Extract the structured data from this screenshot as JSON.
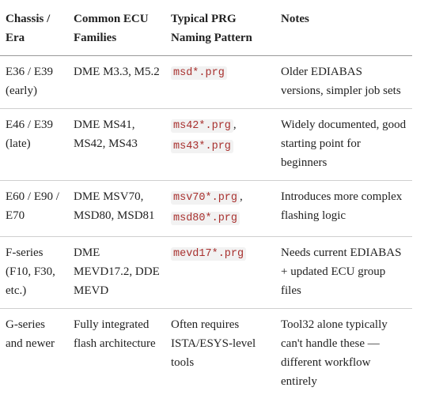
{
  "table": {
    "header": [
      "Chassis / Era",
      "Common ECU Families",
      "Typical PRG Naming Pattern",
      "Notes"
    ],
    "rows": [
      {
        "chassis": "E36 / E39 (early)",
        "families": "DME M3.3, M5.2",
        "pattern": [
          {
            "code": "msd*.prg"
          }
        ],
        "notes": "Older EDIABAS versions, simpler job sets"
      },
      {
        "chassis": "E46 / E39 (late)",
        "families": "DME MS41, MS42, MS43",
        "pattern": [
          {
            "code": "ms42*.prg"
          },
          {
            "text": ","
          },
          {
            "code": "ms43*.prg"
          }
        ],
        "notes": "Widely documented, good starting point for beginners"
      },
      {
        "chassis": "E60 / E90 / E70",
        "families": "DME MSV70, MSD80, MSD81",
        "pattern": [
          {
            "code": "msv70*.prg"
          },
          {
            "text": ","
          },
          {
            "code": "msd80*.prg"
          }
        ],
        "notes": "Introduces more complex flashing logic"
      },
      {
        "chassis": "F-series (F10, F30, etc.)",
        "families": "DME MEVD17.2, DDE MEVD",
        "pattern": [
          {
            "code": "mevd17*.prg"
          }
        ],
        "notes": "Needs current EDIABAS + updated ECU group files"
      },
      {
        "chassis": "G-series and newer",
        "families": "Fully integrated flash architecture",
        "pattern": [
          {
            "text": "Often requires ISTA/ESYS-level tools"
          }
        ],
        "notes": "Tool32 alone typically can't handle these — different workflow entirely"
      }
    ]
  }
}
